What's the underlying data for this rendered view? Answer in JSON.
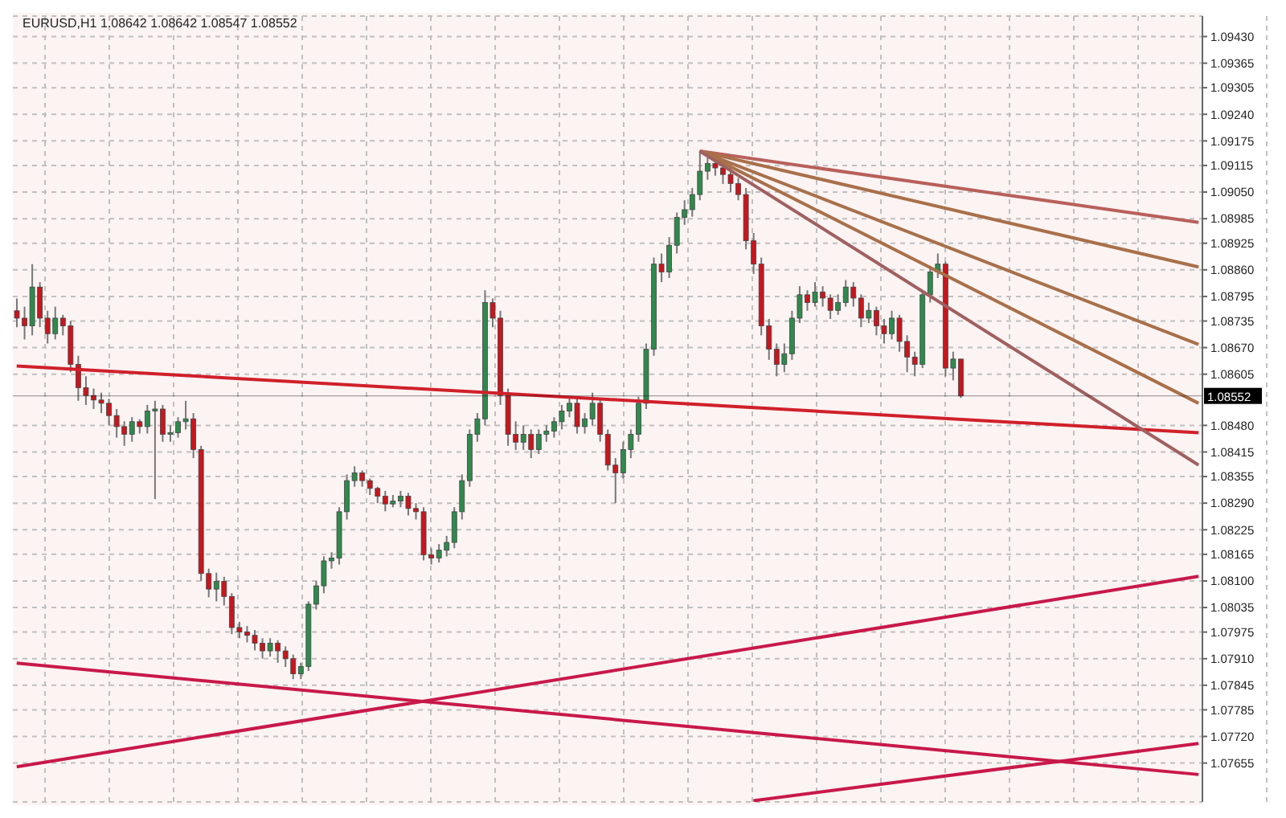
{
  "chart_data": {
    "type": "candlestick",
    "title": "EURUSD,H1  1.08642 1.08642 1.08547 1.08552",
    "categories": [
      null,
      null,
      null,
      null,
      null,
      null,
      null,
      null,
      null,
      null,
      null,
      null,
      null,
      null,
      null,
      null,
      null,
      null,
      null,
      null,
      null,
      null,
      null,
      null,
      null,
      null,
      null,
      null,
      null,
      null,
      null,
      null,
      null,
      null,
      null,
      null,
      null,
      null,
      null,
      null,
      null,
      null,
      null,
      null,
      null,
      null,
      null,
      null,
      null,
      null,
      null,
      null,
      null,
      null,
      null,
      null,
      null,
      null,
      null,
      null,
      null,
      null,
      null,
      null,
      null,
      null,
      null,
      null,
      null,
      null,
      null,
      null,
      null,
      null,
      null,
      null,
      null,
      null,
      null,
      null,
      null,
      null,
      null,
      null,
      null,
      null,
      null,
      null,
      null,
      null,
      null,
      null,
      null,
      null,
      null,
      null,
      null,
      null,
      null,
      null,
      null,
      null,
      null,
      null,
      null,
      null,
      null,
      null,
      null,
      null,
      null,
      null,
      null,
      null,
      null,
      null,
      null,
      null,
      null,
      null,
      null,
      null,
      null,
      null,
      null,
      null,
      null,
      null,
      null,
      null,
      null,
      null,
      null,
      null,
      null,
      null,
      null,
      null,
      null,
      null,
      null,
      null,
      null,
      null,
      null,
      null,
      null,
      null,
      null,
      null,
      null,
      null,
      null,
      null,
      null
    ],
    "ohlc": [
      [
        1.0876,
        1.0879,
        1.0872,
        1.08742
      ],
      [
        1.08742,
        1.0877,
        1.0869,
        1.08723
      ],
      [
        1.08723,
        1.08874,
        1.087,
        1.08818
      ],
      [
        1.08818,
        1.0883,
        1.0872,
        1.08742
      ],
      [
        1.08742,
        1.0876,
        1.0868,
        1.08704
      ],
      [
        1.08704,
        1.0877,
        1.0869,
        1.08742
      ],
      [
        1.08742,
        1.0875,
        1.087,
        1.08723
      ],
      [
        1.08723,
        1.08735,
        1.0861,
        1.08629
      ],
      [
        1.08629,
        1.0865,
        1.0854,
        1.08572
      ],
      [
        1.08572,
        1.086,
        1.0853,
        1.08553
      ],
      [
        1.08553,
        1.0857,
        1.0852,
        1.08542
      ],
      [
        1.08542,
        1.0856,
        1.0851,
        1.08534
      ],
      [
        1.08534,
        1.08545,
        1.0848,
        1.08504
      ],
      [
        1.08504,
        1.0852,
        1.0845,
        1.08477
      ],
      [
        1.08477,
        1.0849,
        1.0843,
        1.08458
      ],
      [
        1.08458,
        1.085,
        1.0844,
        1.08489
      ],
      [
        1.08489,
        1.08495,
        1.0846,
        1.08477
      ],
      [
        1.08477,
        1.0853,
        1.0846,
        1.08515
      ],
      [
        1.08515,
        1.0854,
        1.083,
        1.0852
      ],
      [
        1.0852,
        1.0853,
        1.0844,
        1.08458
      ],
      [
        1.08458,
        1.0848,
        1.0844,
        1.08462
      ],
      [
        1.08462,
        1.085,
        1.0845,
        1.08489
      ],
      [
        1.08489,
        1.0854,
        1.0847,
        1.08496
      ],
      [
        1.08496,
        1.0851,
        1.084,
        1.08421
      ],
      [
        1.08421,
        1.0843,
        1.081,
        1.08118
      ],
      [
        1.08118,
        1.0813,
        1.0806,
        1.0808
      ],
      [
        1.0808,
        1.0812,
        1.0805,
        1.08099
      ],
      [
        1.08099,
        1.0811,
        1.0804,
        1.08062
      ],
      [
        1.08062,
        1.0807,
        1.0797,
        1.07986
      ],
      [
        1.07986,
        1.08,
        1.0796,
        1.07975
      ],
      [
        1.07975,
        1.0799,
        1.0795,
        1.07967
      ],
      [
        1.07967,
        1.0798,
        1.0793,
        1.07948
      ],
      [
        1.07948,
        1.0796,
        1.0791,
        1.07929
      ],
      [
        1.07929,
        1.0796,
        1.07915,
        1.07948
      ],
      [
        1.07948,
        1.07955,
        1.079,
        1.07929
      ],
      [
        1.07929,
        1.0794,
        1.0789,
        1.0791
      ],
      [
        1.0791,
        1.0792,
        1.0786,
        1.07873
      ],
      [
        1.07873,
        1.079,
        1.0786,
        1.07891
      ],
      [
        1.07891,
        1.0805,
        1.0788,
        1.08043
      ],
      [
        1.08043,
        1.081,
        1.0803,
        1.08088
      ],
      [
        1.08088,
        1.0816,
        1.0807,
        1.08149
      ],
      [
        1.08149,
        1.0817,
        1.0813,
        1.08156
      ],
      [
        1.08156,
        1.0828,
        1.0814,
        1.08269
      ],
      [
        1.08269,
        1.0836,
        1.0825,
        1.08345
      ],
      [
        1.08345,
        1.0838,
        1.0833,
        1.08364
      ],
      [
        1.08364,
        1.0837,
        1.0833,
        1.08345
      ],
      [
        1.08345,
        1.0835,
        1.0831,
        1.08326
      ],
      [
        1.08326,
        1.0833,
        1.0829,
        1.08307
      ],
      [
        1.08307,
        1.0832,
        1.0827,
        1.08288
      ],
      [
        1.08288,
        1.0831,
        1.0828,
        1.08295
      ],
      [
        1.08295,
        1.0832,
        1.0828,
        1.08307
      ],
      [
        1.08307,
        1.08315,
        1.0826,
        1.08277
      ],
      [
        1.08277,
        1.0829,
        1.0825,
        1.08269
      ],
      [
        1.08269,
        1.0828,
        1.0815,
        1.08164
      ],
      [
        1.08164,
        1.0818,
        1.0814,
        1.08156
      ],
      [
        1.08156,
        1.0819,
        1.08145,
        1.08175
      ],
      [
        1.08175,
        1.0821,
        1.0816,
        1.08194
      ],
      [
        1.08194,
        1.0828,
        1.0818,
        1.08269
      ],
      [
        1.08269,
        1.0836,
        1.0825,
        1.08345
      ],
      [
        1.08345,
        1.0847,
        1.0833,
        1.08458
      ],
      [
        1.08458,
        1.0851,
        1.0844,
        1.08496
      ],
      [
        1.08496,
        1.0881,
        1.0848,
        1.0878
      ],
      [
        1.0878,
        1.0879,
        1.0872,
        1.08742
      ],
      [
        1.08742,
        1.0876,
        1.0853,
        1.08553
      ],
      [
        1.08553,
        1.0857,
        1.0843,
        1.08458
      ],
      [
        1.08458,
        1.0849,
        1.0842,
        1.08439
      ],
      [
        1.08439,
        1.0848,
        1.0842,
        1.08458
      ],
      [
        1.08458,
        1.0847,
        1.084,
        1.08421
      ],
      [
        1.08421,
        1.0847,
        1.0841,
        1.08458
      ],
      [
        1.08458,
        1.0848,
        1.0844,
        1.08466
      ],
      [
        1.08466,
        1.085,
        1.0845,
        1.08489
      ],
      [
        1.08489,
        1.0853,
        1.0847,
        1.08515
      ],
      [
        1.08515,
        1.0855,
        1.085,
        1.08534
      ],
      [
        1.08534,
        1.08545,
        1.0846,
        1.08477
      ],
      [
        1.08477,
        1.0851,
        1.0846,
        1.08496
      ],
      [
        1.08496,
        1.0856,
        1.0848,
        1.08534
      ],
      [
        1.08534,
        1.08545,
        1.0844,
        1.08458
      ],
      [
        1.08458,
        1.0847,
        1.0837,
        1.08383
      ],
      [
        1.08383,
        1.084,
        1.0829,
        1.08364
      ],
      [
        1.08364,
        1.0844,
        1.0835,
        1.08421
      ],
      [
        1.08421,
        1.0847,
        1.084,
        1.08458
      ],
      [
        1.08458,
        1.0855,
        1.0844,
        1.08534
      ],
      [
        1.08534,
        1.0868,
        1.0852,
        1.08666
      ],
      [
        1.08666,
        1.0889,
        1.0865,
        1.08874
      ],
      [
        1.08874,
        1.089,
        1.0883,
        1.08855
      ],
      [
        1.08855,
        1.0894,
        1.0884,
        1.0892
      ],
      [
        1.0892,
        1.09,
        1.089,
        1.08988
      ],
      [
        1.08988,
        1.0903,
        1.0897,
        1.09007
      ],
      [
        1.09007,
        1.0906,
        1.0899,
        1.09044
      ],
      [
        1.09044,
        1.0915,
        1.0903,
        1.09101
      ],
      [
        1.09101,
        1.0914,
        1.0908,
        1.0912
      ],
      [
        1.0912,
        1.0913,
        1.0909,
        1.09109
      ],
      [
        1.09109,
        1.0912,
        1.0907,
        1.09093
      ],
      [
        1.09093,
        1.0911,
        1.0905,
        1.09071
      ],
      [
        1.09071,
        1.09085,
        1.0903,
        1.09044
      ],
      [
        1.09044,
        1.0906,
        1.0891,
        1.08931
      ],
      [
        1.08931,
        1.0895,
        1.0885,
        1.08874
      ],
      [
        1.08874,
        1.0889,
        1.087,
        1.08723
      ],
      [
        1.08723,
        1.0874,
        1.0864,
        1.08666
      ],
      [
        1.08666,
        1.0868,
        1.086,
        1.08629
      ],
      [
        1.08629,
        1.0868,
        1.0861,
        1.08655
      ],
      [
        1.08655,
        1.0876,
        1.0864,
        1.08742
      ],
      [
        1.08742,
        1.0882,
        1.0873,
        1.08799
      ],
      [
        1.08799,
        1.0881,
        1.0876,
        1.0878
      ],
      [
        1.0878,
        1.0883,
        1.0877,
        1.08806
      ],
      [
        1.08806,
        1.0882,
        1.0877,
        1.08791
      ],
      [
        1.08791,
        1.088,
        1.0874,
        1.08761
      ],
      [
        1.08761,
        1.088,
        1.0875,
        1.0878
      ],
      [
        1.0878,
        1.08835,
        1.0877,
        1.08818
      ],
      [
        1.08818,
        1.0883,
        1.0877,
        1.08791
      ],
      [
        1.08791,
        1.088,
        1.0872,
        1.08742
      ],
      [
        1.08742,
        1.0878,
        1.0873,
        1.08761
      ],
      [
        1.08761,
        1.0877,
        1.087,
        1.08723
      ],
      [
        1.08723,
        1.0874,
        1.0868,
        1.08704
      ],
      [
        1.08704,
        1.0876,
        1.0869,
        1.08742
      ],
      [
        1.08742,
        1.0875,
        1.0866,
        1.08685
      ],
      [
        1.08685,
        1.087,
        1.0861,
        1.08647
      ],
      [
        1.08647,
        1.0866,
        1.086,
        1.08629
      ],
      [
        1.08629,
        1.0881,
        1.0862,
        1.08799
      ],
      [
        1.08799,
        1.0887,
        1.0878,
        1.08855
      ],
      [
        1.08855,
        1.089,
        1.0884,
        1.08874
      ],
      [
        1.08874,
        1.0888,
        1.086,
        1.0862
      ],
      [
        1.0862,
        1.0866,
        1.0859,
        1.08642
      ],
      [
        1.08642,
        1.08642,
        1.08547,
        1.08552
      ],
      null,
      null,
      null,
      null,
      null,
      null,
      null,
      null,
      null,
      null,
      null,
      null,
      null,
      null,
      null,
      null,
      null,
      null,
      null,
      null,
      null,
      null,
      null,
      null,
      null,
      null,
      null,
      null,
      null,
      null,
      null
    ],
    "series": [
      {
        "type": "line",
        "color": "#d0202a",
        "values": [
          1.08625,
          null,
          null,
          null,
          null,
          null,
          null,
          null,
          null,
          null,
          null,
          null,
          null,
          null,
          null,
          null,
          null,
          null,
          null,
          null,
          null,
          null,
          null,
          null,
          null,
          null,
          null,
          null,
          null,
          null,
          null,
          null,
          null,
          null,
          null,
          null,
          null,
          null,
          null,
          null,
          null,
          null,
          null,
          null,
          null,
          null,
          null,
          null,
          null,
          null,
          null,
          null,
          null,
          null,
          null,
          null,
          null,
          null,
          null,
          null,
          null,
          null,
          null,
          null,
          null,
          null,
          null,
          null,
          null,
          null,
          null,
          null,
          null,
          null,
          null,
          null,
          null,
          null,
          null,
          null,
          null,
          null,
          null,
          null,
          null,
          null,
          null,
          null,
          null,
          null,
          null,
          null,
          null,
          null,
          null,
          null,
          null,
          null,
          null,
          null,
          null,
          null,
          null,
          null,
          null,
          null,
          null,
          null,
          null,
          null,
          null,
          null,
          null,
          null,
          null,
          null,
          null,
          null,
          null,
          null,
          null,
          null,
          null,
          null,
          null,
          null,
          null,
          null,
          null,
          null,
          null,
          null,
          null,
          null,
          null,
          null,
          null,
          null,
          null,
          null,
          null,
          null,
          null,
          null,
          null,
          null,
          null,
          null,
          null,
          null,
          null,
          null,
          null,
          null,
          1.08462
        ]
      },
      {
        "type": "line",
        "color": "#c8184a",
        "values": [
          1.07646,
          null,
          null,
          null,
          null,
          null,
          null,
          null,
          null,
          null,
          null,
          null,
          null,
          null,
          null,
          null,
          null,
          null,
          null,
          null,
          null,
          null,
          null,
          null,
          null,
          null,
          null,
          null,
          null,
          null,
          null,
          null,
          null,
          null,
          null,
          null,
          null,
          null,
          null,
          null,
          null,
          null,
          null,
          null,
          null,
          null,
          null,
          null,
          null,
          null,
          null,
          null,
          null,
          null,
          null,
          null,
          null,
          null,
          null,
          null,
          null,
          null,
          null,
          null,
          null,
          null,
          null,
          null,
          null,
          null,
          null,
          null,
          null,
          null,
          null,
          null,
          null,
          null,
          null,
          null,
          null,
          null,
          null,
          null,
          null,
          null,
          null,
          null,
          null,
          null,
          null,
          null,
          null,
          null,
          null,
          null,
          null,
          null,
          null,
          null,
          null,
          null,
          null,
          null,
          null,
          null,
          null,
          null,
          null,
          null,
          null,
          null,
          null,
          null,
          null,
          null,
          null,
          null,
          null,
          null,
          null,
          null,
          null,
          null,
          null,
          null,
          null,
          null,
          null,
          null,
          null,
          null,
          null,
          null,
          null,
          null,
          null,
          null,
          null,
          null,
          null,
          null,
          null,
          null,
          null,
          null,
          null,
          null,
          null,
          null,
          null,
          null,
          null,
          null,
          1.08111
        ]
      },
      {
        "type": "line",
        "color": "#c8184a",
        "values": [
          1.07899,
          null,
          null,
          null,
          null,
          null,
          null,
          null,
          null,
          null,
          null,
          null,
          null,
          null,
          null,
          null,
          null,
          null,
          null,
          null,
          null,
          null,
          null,
          null,
          null,
          null,
          null,
          null,
          null,
          null,
          null,
          null,
          null,
          null,
          null,
          null,
          null,
          null,
          null,
          null,
          null,
          null,
          null,
          null,
          null,
          null,
          null,
          null,
          null,
          null,
          null,
          null,
          null,
          null,
          null,
          null,
          null,
          null,
          null,
          null,
          null,
          null,
          null,
          null,
          null,
          null,
          null,
          null,
          null,
          null,
          null,
          null,
          null,
          null,
          null,
          null,
          null,
          null,
          null,
          null,
          null,
          null,
          null,
          null,
          null,
          null,
          null,
          null,
          null,
          null,
          null,
          null,
          null,
          null,
          null,
          null,
          null,
          null,
          null,
          null,
          null,
          null,
          null,
          null,
          null,
          null,
          null,
          null,
          null,
          null,
          null,
          null,
          null,
          null,
          null,
          null,
          null,
          null,
          null,
          null,
          null,
          null,
          null,
          null,
          null,
          null,
          null,
          null,
          null,
          null,
          null,
          null,
          null,
          null,
          null,
          null,
          null,
          null,
          null,
          null,
          null,
          null,
          null,
          null,
          null,
          null,
          null,
          null,
          null,
          null,
          null,
          null,
          null,
          null,
          1.07627
        ]
      },
      {
        "type": "line",
        "color": "#c8184a",
        "values": [
          null,
          null,
          null,
          null,
          null,
          null,
          null,
          null,
          null,
          null,
          null,
          null,
          null,
          null,
          null,
          null,
          null,
          null,
          null,
          null,
          null,
          null,
          null,
          null,
          null,
          null,
          null,
          null,
          null,
          null,
          null,
          null,
          null,
          null,
          null,
          null,
          null,
          null,
          null,
          null,
          null,
          null,
          null,
          null,
          null,
          null,
          null,
          null,
          null,
          null,
          null,
          null,
          null,
          null,
          null,
          null,
          null,
          null,
          null,
          null,
          null,
          null,
          null,
          null,
          null,
          null,
          null,
          null,
          null,
          null,
          null,
          null,
          null,
          null,
          null,
          null,
          null,
          null,
          null,
          null,
          null,
          null,
          null,
          null,
          null,
          null,
          null,
          null,
          null,
          null,
          null,
          null,
          null,
          null,
          null,
          null,
          1.07563,
          null,
          null,
          null,
          null,
          null,
          null,
          null,
          null,
          null,
          null,
          null,
          null,
          null,
          null,
          null,
          null,
          null,
          null,
          null,
          null,
          null,
          null,
          null,
          null,
          null,
          null,
          null,
          null,
          null,
          null,
          null,
          null,
          null,
          null,
          null,
          null,
          null,
          null,
          null,
          null,
          null,
          null,
          null,
          null,
          null,
          null,
          null,
          null,
          null,
          null,
          null,
          null,
          null,
          null,
          null,
          null,
          null,
          1.07703
        ]
      },
      {
        "type": "line",
        "color": "#b8605a",
        "values": [
          null,
          null,
          null,
          null,
          null,
          null,
          null,
          null,
          null,
          null,
          null,
          null,
          null,
          null,
          null,
          null,
          null,
          null,
          null,
          null,
          null,
          null,
          null,
          null,
          null,
          null,
          null,
          null,
          null,
          null,
          null,
          null,
          null,
          null,
          null,
          null,
          null,
          null,
          null,
          null,
          null,
          null,
          null,
          null,
          null,
          null,
          null,
          null,
          null,
          null,
          null,
          null,
          null,
          null,
          null,
          null,
          null,
          null,
          null,
          null,
          null,
          null,
          null,
          null,
          null,
          null,
          null,
          null,
          null,
          null,
          null,
          null,
          null,
          null,
          null,
          null,
          null,
          null,
          null,
          null,
          null,
          null,
          null,
          null,
          null,
          null,
          null,
          null,
          null,
          1.0915,
          null,
          null,
          null,
          null,
          null,
          null,
          null,
          null,
          null,
          null,
          null,
          null,
          null,
          null,
          null,
          null,
          null,
          null,
          null,
          null,
          null,
          null,
          null,
          null,
          null,
          null,
          null,
          null,
          null,
          null,
          null,
          null,
          null,
          null,
          null,
          null,
          null,
          null,
          null,
          null,
          null,
          null,
          null,
          null,
          null,
          null,
          null,
          null,
          null,
          null,
          null,
          null,
          null,
          null,
          null,
          null,
          null,
          null,
          null,
          null,
          null,
          null,
          null,
          null,
          1.08976
        ]
      },
      {
        "type": "line",
        "color": "#a8704a",
        "values": [
          null,
          null,
          null,
          null,
          null,
          null,
          null,
          null,
          null,
          null,
          null,
          null,
          null,
          null,
          null,
          null,
          null,
          null,
          null,
          null,
          null,
          null,
          null,
          null,
          null,
          null,
          null,
          null,
          null,
          null,
          null,
          null,
          null,
          null,
          null,
          null,
          null,
          null,
          null,
          null,
          null,
          null,
          null,
          null,
          null,
          null,
          null,
          null,
          null,
          null,
          null,
          null,
          null,
          null,
          null,
          null,
          null,
          null,
          null,
          null,
          null,
          null,
          null,
          null,
          null,
          null,
          null,
          null,
          null,
          null,
          null,
          null,
          null,
          null,
          null,
          null,
          null,
          null,
          null,
          null,
          null,
          null,
          null,
          null,
          null,
          null,
          null,
          null,
          null,
          1.0915,
          null,
          null,
          null,
          null,
          null,
          null,
          null,
          null,
          null,
          null,
          null,
          null,
          null,
          null,
          null,
          null,
          null,
          null,
          null,
          null,
          null,
          null,
          null,
          null,
          null,
          null,
          null,
          null,
          null,
          null,
          null,
          null,
          null,
          null,
          null,
          null,
          null,
          null,
          null,
          null,
          null,
          null,
          null,
          null,
          null,
          null,
          null,
          null,
          null,
          null,
          null,
          null,
          null,
          null,
          null,
          null,
          null,
          null,
          null,
          null,
          null,
          null,
          null,
          null,
          1.08867
        ]
      },
      {
        "type": "line",
        "color": "#a8704a",
        "values": [
          null,
          null,
          null,
          null,
          null,
          null,
          null,
          null,
          null,
          null,
          null,
          null,
          null,
          null,
          null,
          null,
          null,
          null,
          null,
          null,
          null,
          null,
          null,
          null,
          null,
          null,
          null,
          null,
          null,
          null,
          null,
          null,
          null,
          null,
          null,
          null,
          null,
          null,
          null,
          null,
          null,
          null,
          null,
          null,
          null,
          null,
          null,
          null,
          null,
          null,
          null,
          null,
          null,
          null,
          null,
          null,
          null,
          null,
          null,
          null,
          null,
          null,
          null,
          null,
          null,
          null,
          null,
          null,
          null,
          null,
          null,
          null,
          null,
          null,
          null,
          null,
          null,
          null,
          null,
          null,
          null,
          null,
          null,
          null,
          null,
          null,
          null,
          null,
          null,
          1.0915,
          null,
          null,
          null,
          null,
          null,
          null,
          null,
          null,
          null,
          null,
          null,
          null,
          null,
          null,
          null,
          null,
          null,
          null,
          null,
          null,
          null,
          null,
          null,
          null,
          null,
          null,
          null,
          null,
          null,
          null,
          null,
          null,
          null,
          null,
          null,
          null,
          null,
          null,
          null,
          null,
          null,
          null,
          null,
          null,
          null,
          null,
          null,
          null,
          null,
          null,
          null,
          null,
          null,
          null,
          null,
          null,
          null,
          null,
          null,
          null,
          null,
          null,
          null,
          null,
          1.08678
        ]
      },
      {
        "type": "line",
        "color": "#a8704a",
        "values": [
          null,
          null,
          null,
          null,
          null,
          null,
          null,
          null,
          null,
          null,
          null,
          null,
          null,
          null,
          null,
          null,
          null,
          null,
          null,
          null,
          null,
          null,
          null,
          null,
          null,
          null,
          null,
          null,
          null,
          null,
          null,
          null,
          null,
          null,
          null,
          null,
          null,
          null,
          null,
          null,
          null,
          null,
          null,
          null,
          null,
          null,
          null,
          null,
          null,
          null,
          null,
          null,
          null,
          null,
          null,
          null,
          null,
          null,
          null,
          null,
          null,
          null,
          null,
          null,
          null,
          null,
          null,
          null,
          null,
          null,
          null,
          null,
          null,
          null,
          null,
          null,
          null,
          null,
          null,
          null,
          null,
          null,
          null,
          null,
          null,
          null,
          null,
          null,
          null,
          1.0915,
          null,
          null,
          null,
          null,
          null,
          null,
          null,
          null,
          null,
          null,
          null,
          null,
          null,
          null,
          null,
          null,
          null,
          null,
          null,
          null,
          null,
          null,
          null,
          null,
          null,
          null,
          null,
          null,
          null,
          null,
          null,
          null,
          null,
          null,
          null,
          null,
          null,
          null,
          null,
          null,
          null,
          null,
          null,
          null,
          null,
          null,
          null,
          null,
          null,
          null,
          null,
          null,
          null,
          null,
          null,
          null,
          null,
          null,
          null,
          null,
          null,
          null,
          null,
          null,
          1.08534
        ]
      },
      {
        "type": "line",
        "color": "#a06060",
        "values": [
          null,
          null,
          null,
          null,
          null,
          null,
          null,
          null,
          null,
          null,
          null,
          null,
          null,
          null,
          null,
          null,
          null,
          null,
          null,
          null,
          null,
          null,
          null,
          null,
          null,
          null,
          null,
          null,
          null,
          null,
          null,
          null,
          null,
          null,
          null,
          null,
          null,
          null,
          null,
          null,
          null,
          null,
          null,
          null,
          null,
          null,
          null,
          null,
          null,
          null,
          null,
          null,
          null,
          null,
          null,
          null,
          null,
          null,
          null,
          null,
          null,
          null,
          null,
          null,
          null,
          null,
          null,
          null,
          null,
          null,
          null,
          null,
          null,
          null,
          null,
          null,
          null,
          null,
          null,
          null,
          null,
          null,
          null,
          null,
          null,
          null,
          null,
          null,
          null,
          1.0915,
          null,
          null,
          null,
          null,
          null,
          null,
          null,
          null,
          null,
          null,
          null,
          null,
          null,
          null,
          null,
          null,
          null,
          null,
          null,
          null,
          null,
          null,
          null,
          null,
          null,
          null,
          null,
          null,
          null,
          null,
          null,
          null,
          null,
          null,
          null,
          null,
          null,
          null,
          null,
          null,
          null,
          null,
          null,
          null,
          null,
          null,
          null,
          null,
          null,
          null,
          null,
          null,
          null,
          null,
          null,
          null,
          null,
          null,
          null,
          null,
          null,
          null,
          null,
          null,
          1.08383
        ]
      }
    ],
    "ref_lines": [
      {
        "axis": "y",
        "value": 1.08552,
        "label": "1.08552",
        "color": "#000000"
      }
    ],
    "ylim": [
      1.0756,
      1.0948
    ],
    "yticks": [
      {
        "value": 1.0943,
        "label": "1.09430"
      },
      {
        "value": 1.09365,
        "label": "1.09365"
      },
      {
        "value": 1.09305,
        "label": "1.09305"
      },
      {
        "value": 1.0924,
        "label": "1.09240"
      },
      {
        "value": 1.09175,
        "label": "1.09175"
      },
      {
        "value": 1.09115,
        "label": "1.09115"
      },
      {
        "value": 1.0905,
        "label": "1.09050"
      },
      {
        "value": 1.08985,
        "label": "1.08985"
      },
      {
        "value": 1.08925,
        "label": "1.08925"
      },
      {
        "value": 1.0886,
        "label": "1.08860"
      },
      {
        "value": 1.08795,
        "label": "1.08795"
      },
      {
        "value": 1.08735,
        "label": "1.08735"
      },
      {
        "value": 1.0867,
        "label": "1.08670"
      },
      {
        "value": 1.08605,
        "label": "1.08605"
      },
      {
        "value": 1.0848,
        "label": "1.08480"
      },
      {
        "value": 1.08415,
        "label": "1.08415"
      },
      {
        "value": 1.08355,
        "label": "1.08355"
      },
      {
        "value": 1.0829,
        "label": "1.08290"
      },
      {
        "value": 1.08225,
        "label": "1.08225"
      },
      {
        "value": 1.08165,
        "label": "1.08165"
      },
      {
        "value": 1.081,
        "label": "1.08100"
      },
      {
        "value": 1.08035,
        "label": "1.08035"
      },
      {
        "value": 1.07975,
        "label": "1.07975"
      },
      {
        "value": 1.0791,
        "label": "1.07910"
      },
      {
        "value": 1.07845,
        "label": "1.07845"
      },
      {
        "value": 1.07785,
        "label": "1.07785"
      },
      {
        "value": 1.0772,
        "label": "1.07720"
      },
      {
        "value": 1.07655,
        "label": "1.07655"
      }
    ],
    "grid": true,
    "tick_labels": "y",
    "legend": false
  }
}
